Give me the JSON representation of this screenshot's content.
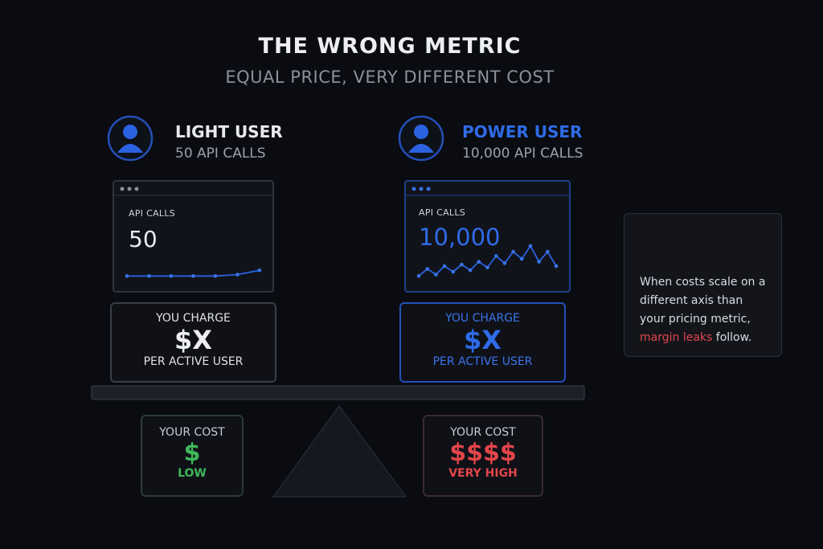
{
  "header": {
    "title": "THE WRONG METRIC",
    "subtitle": "EQUAL PRICE, VERY DIFFERENT COST"
  },
  "users": [
    {
      "name": "LIGHT USER",
      "usage": "50 API CALLS",
      "card_label": "API CALLS",
      "card_value": "50",
      "sparkline": [
        2,
        2,
        2,
        2,
        2,
        3,
        6
      ],
      "charge_label": "YOU CHARGE",
      "charge_value": "$X",
      "charge_unit": "PER ACTIVE USER",
      "cost_label": "YOUR COST",
      "cost_value": "$",
      "cost_level": "LOW"
    },
    {
      "name": "POWER USER",
      "usage": "10,000 API CALLS",
      "card_label": "API CALLS",
      "card_value": "10,000",
      "sparkline": [
        2,
        7,
        3,
        9,
        5,
        10,
        6,
        12,
        8,
        16,
        11,
        19,
        14,
        23,
        12,
        19,
        9
      ],
      "charge_label": "YOU CHARGE",
      "charge_value": "$X",
      "charge_unit": "PER ACTIVE USER",
      "cost_label": "YOUR COST",
      "cost_value": "$$$$",
      "cost_level": "VERY HIGH"
    }
  ],
  "note": {
    "text_before": "When costs scale on a different axis than your pricing metric, ",
    "highlight": "margin leaks",
    "text_after": " follow."
  }
}
